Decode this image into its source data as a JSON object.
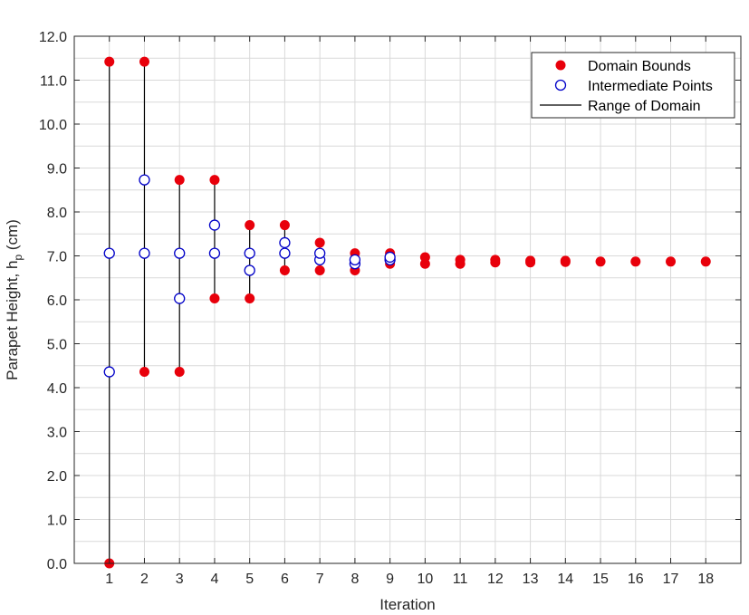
{
  "chart_data": {
    "type": "scatter",
    "xlabel": "Iteration",
    "ylabel_main": "Parapet Height, h",
    "ylabel_sub": "p",
    "ylabel_unit": " (cm)",
    "xlim": [
      0,
      19
    ],
    "ylim": [
      0,
      12
    ],
    "x_ticks": [
      1,
      2,
      3,
      4,
      5,
      6,
      7,
      8,
      9,
      10,
      11,
      12,
      13,
      14,
      15,
      16,
      17,
      18
    ],
    "x_tick_labels": [
      "1",
      "2",
      "3",
      "4",
      "5",
      "6",
      "7",
      "8",
      "9",
      "10",
      "11",
      "12",
      "13",
      "14",
      "15",
      "16",
      "17",
      "18"
    ],
    "y_ticks": [
      0,
      1,
      2,
      3,
      4,
      5,
      6,
      7,
      8,
      9,
      10,
      11,
      12
    ],
    "y_tick_labels": [
      "0.0",
      "1.0",
      "2.0",
      "3.0",
      "4.0",
      "5.0",
      "6.0",
      "7.0",
      "8.0",
      "9.0",
      "10.0",
      "11.0",
      "12.0"
    ],
    "grid": true,
    "legend_position": "top-right",
    "colors": {
      "bounds": "#e8000b",
      "intermediate": "#0000c8",
      "range": "#000000",
      "grid": "#d9d9d9"
    },
    "series": [
      {
        "name": "Domain Bounds",
        "marker": "filled-circle",
        "points": [
          [
            1,
            0.0
          ],
          [
            1,
            11.42
          ],
          [
            2,
            4.36
          ],
          [
            2,
            11.42
          ],
          [
            3,
            4.36
          ],
          [
            3,
            8.73
          ],
          [
            4,
            6.03
          ],
          [
            4,
            8.73
          ],
          [
            5,
            6.03
          ],
          [
            5,
            7.7
          ],
          [
            6,
            6.67
          ],
          [
            6,
            7.7
          ],
          [
            7,
            6.67
          ],
          [
            7,
            7.3
          ],
          [
            8,
            6.67
          ],
          [
            8,
            7.06
          ],
          [
            9,
            6.82
          ],
          [
            9,
            7.06
          ],
          [
            10,
            6.82
          ],
          [
            10,
            6.97
          ],
          [
            11,
            6.82
          ],
          [
            11,
            6.91
          ],
          [
            12,
            6.85
          ],
          [
            12,
            6.91
          ],
          [
            13,
            6.85
          ],
          [
            13,
            6.89
          ],
          [
            14,
            6.86
          ],
          [
            14,
            6.89
          ],
          [
            15,
            6.87
          ],
          [
            16,
            6.87
          ],
          [
            17,
            6.87
          ],
          [
            18,
            6.87
          ]
        ]
      },
      {
        "name": "Intermediate Points",
        "marker": "open-circle",
        "points": [
          [
            1,
            4.36
          ],
          [
            1,
            7.06
          ],
          [
            2,
            7.06
          ],
          [
            2,
            8.73
          ],
          [
            3,
            6.03
          ],
          [
            3,
            7.06
          ],
          [
            4,
            7.06
          ],
          [
            4,
            7.7
          ],
          [
            5,
            6.67
          ],
          [
            5,
            7.06
          ],
          [
            6,
            7.06
          ],
          [
            6,
            7.3
          ],
          [
            7,
            6.91
          ],
          [
            7,
            7.06
          ],
          [
            8,
            6.82
          ],
          [
            8,
            6.91
          ],
          [
            9,
            6.91
          ],
          [
            9,
            6.97
          ]
        ]
      },
      {
        "name": "Range of Domain",
        "marker": "line",
        "ranges": [
          [
            1,
            0.0,
            11.42
          ],
          [
            2,
            4.36,
            11.42
          ],
          [
            3,
            4.36,
            8.73
          ],
          [
            4,
            6.03,
            8.73
          ],
          [
            5,
            6.03,
            7.7
          ],
          [
            6,
            6.67,
            7.7
          ],
          [
            7,
            6.67,
            7.3
          ],
          [
            8,
            6.67,
            7.06
          ],
          [
            9,
            6.82,
            7.06
          ]
        ]
      }
    ]
  }
}
